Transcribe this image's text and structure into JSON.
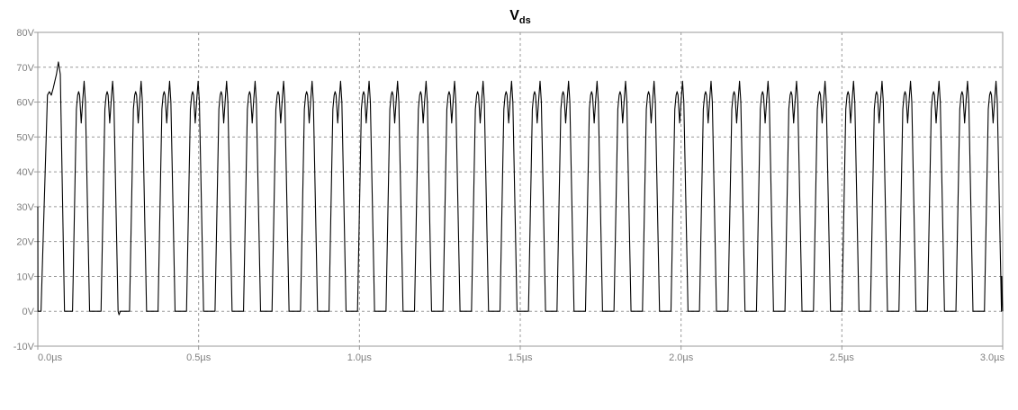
{
  "chart_data": {
    "type": "line",
    "title": "V",
    "title_subscript": "ds",
    "xlabel": "",
    "ylabel": "",
    "xlim": [
      0,
      3.0
    ],
    "ylim": [
      -10,
      80
    ],
    "x_unit": "µs",
    "y_unit": "V",
    "x_ticks": [
      0.0,
      0.5,
      1.0,
      1.5,
      2.0,
      2.5,
      3.0
    ],
    "x_tick_labels": [
      "0.0µs",
      "0.5µs",
      "1.0µs",
      "1.5µs",
      "2.0µs",
      "2.5µs",
      "3.0µs"
    ],
    "y_ticks": [
      -10,
      0,
      10,
      20,
      30,
      40,
      50,
      60,
      70,
      80
    ],
    "y_tick_labels": [
      "-10V",
      "0V",
      "10V",
      "20V",
      "30V",
      "40V",
      "50V",
      "60V",
      "70V",
      "80V"
    ],
    "grid": true,
    "legend": "none",
    "colors": {
      "trace": "#000000",
      "grid": "#9a9a9a",
      "tick_text": "#808080"
    },
    "series": [
      {
        "period": 0.0886,
        "peak_high": 66,
        "peak_low": 62,
        "dip": 54,
        "min": 0,
        "initial_peak": 71.5,
        "initial_undershoot": -1,
        "end_value": 0
      }
    ]
  }
}
